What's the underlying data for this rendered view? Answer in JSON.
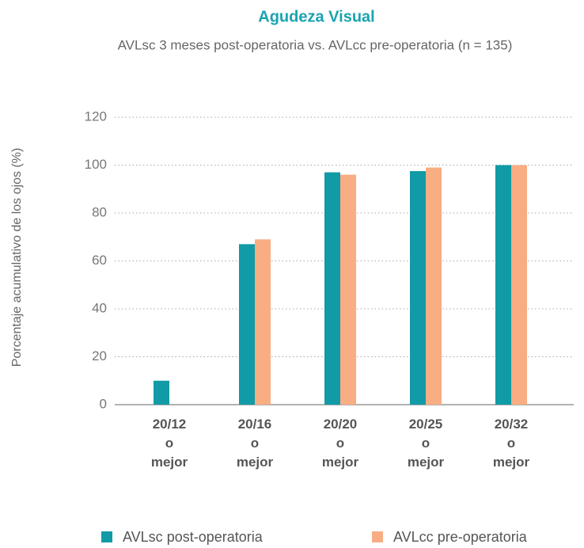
{
  "chart_data": {
    "type": "bar",
    "title": "Agudeza Visual",
    "subtitle": "AVLsc 3 meses post-operatoria vs. AVLcc pre-operatoria (n = 135)",
    "y_label": "Porcentaje acumulativo de los ojos (%)",
    "categories": [
      "20/12\no\nmejor",
      "20/16\no\nmejor",
      "20/20\no\nmejor",
      "20/25\no\nmejor",
      "20/32\no\nmejor"
    ],
    "series": [
      {
        "name": "AVLsc post-operatoria",
        "color": "#109ba6",
        "values": [
          10,
          67,
          97,
          97.5,
          100
        ]
      },
      {
        "name": "AVLcc pre-operatoria",
        "color": "#f8ad83",
        "values": [
          null,
          69,
          96,
          99,
          100
        ]
      }
    ],
    "ylim": [
      0,
      120
    ],
    "yticks": [
      0,
      20,
      40,
      60,
      80,
      100,
      120
    ],
    "grid": true
  }
}
